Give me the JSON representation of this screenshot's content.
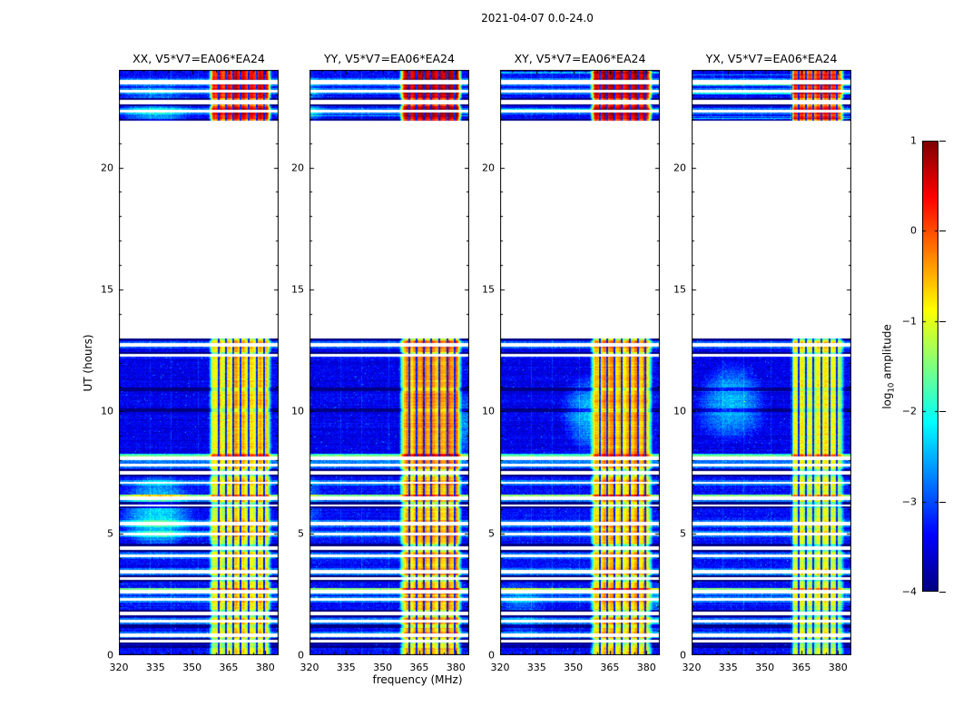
{
  "figure": {
    "title": "2021-04-07 0.0-24.0"
  },
  "chart_data": {
    "type": "heatmap",
    "subtype": "dynamic_spectrum_waterfall",
    "description": "Four-panel time-frequency waterfall of correlation amplitudes (XX, YY, XY, YX) for baseline V5*V7=EA06*EA24; data present 0-13 UT and ~21.9-24 UT, blank elsewhere; bright RFI band near 358-381.5 MHz.",
    "title": "2021-04-07 0.0-24.0",
    "panels": [
      {
        "pol": "XX",
        "title": "XX, V5*V7=EA06*EA24",
        "band_boost": 0.0
      },
      {
        "pol": "YY",
        "title": "YY, V5*V7=EA06*EA24",
        "band_boost": 0.38
      },
      {
        "pol": "XY",
        "title": "XY, V5*V7=EA06*EA24",
        "band_boost": 0.22
      },
      {
        "pol": "YX",
        "title": "YX, V5*V7=EA06*EA24",
        "band_boost": -0.3,
        "band_f_lo": 361.5
      }
    ],
    "x_axis": {
      "label": "frequency (MHz)",
      "range": [
        320,
        385.5
      ],
      "ticks": [
        320,
        335,
        350,
        365,
        380
      ],
      "tick_labels": [
        "320",
        "335",
        "350",
        "365",
        "380"
      ],
      "minor_tick_step": 5
    },
    "y_axis": {
      "label": "UT (hours)",
      "range": [
        0,
        24
      ],
      "ticks": [
        0,
        5,
        10,
        15,
        20
      ],
      "tick_labels": [
        "0",
        "5",
        "10",
        "15",
        "20"
      ],
      "minor_tick_step": 1
    },
    "colorbar": {
      "label_prefix": "log",
      "label_sub": "10",
      "label_suffix": " amplitude",
      "range": [
        -4,
        1
      ],
      "ticks": [
        1,
        0,
        -1,
        -2,
        -3,
        -4
      ],
      "tick_labels": [
        "1",
        "0",
        "−1",
        "−2",
        "−3",
        "−4"
      ],
      "colormap": "jet"
    },
    "data_intervals_ut": [
      [
        0,
        13
      ],
      [
        21.9,
        24
      ]
    ],
    "data_gaps_ut": [
      0.56,
      0.82,
      1.41,
      1.71,
      2.3,
      2.6,
      3.13,
      3.42,
      4.06,
      4.39,
      4.95,
      5.4,
      6.14,
      6.43,
      7.07,
      7.48,
      7.81,
      8.07,
      12.31,
      12.72,
      22.3,
      22.68,
      23.12,
      23.5
    ],
    "bright_band": {
      "f_lo": 358,
      "f_hi": 381.5,
      "level": -0.95
    },
    "texture": {
      "background_level": -3.35,
      "noise_sigma": 0.3,
      "dark_channels_mhz": [
        361,
        364,
        367,
        370,
        373.2,
        376.4,
        379.4
      ],
      "faint_lines_mhz": [
        333,
        341.5,
        352.5
      ],
      "bright_rows_ut": [
        2.72,
        6.55,
        8.2,
        12.2
      ],
      "dark_rows_ut": [
        0.35,
        1.18,
        4.5,
        10.05,
        10.9
      ],
      "strong_band_interval_ut": [
        8.1,
        12.95
      ],
      "strong_band_extra": 0.2,
      "top_block_band_extra": 1.25
    }
  }
}
